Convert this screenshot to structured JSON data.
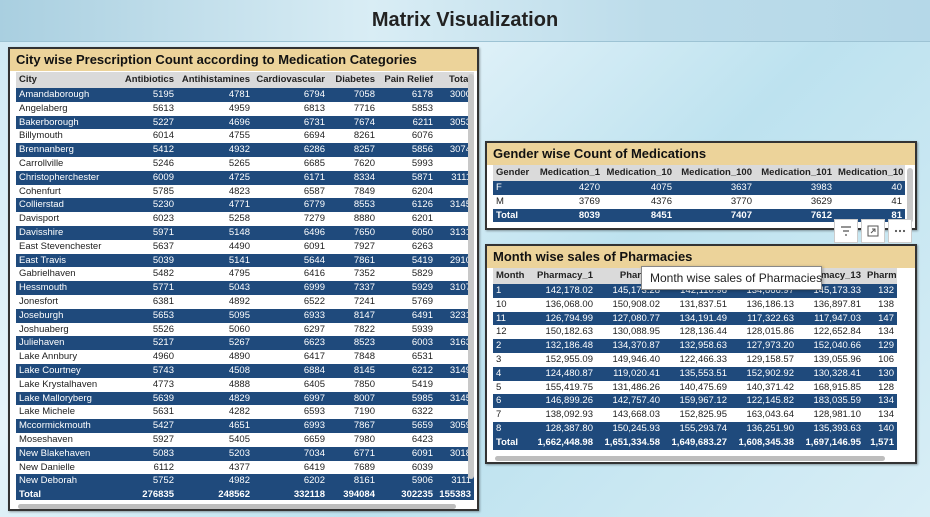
{
  "page": {
    "title": "Matrix Visualization"
  },
  "city": {
    "title": "City wise Prescription Count according to Medication Categories",
    "headers": [
      "City",
      "Antibiotics",
      "Antihistamines",
      "Cardiovascular",
      "Diabetes",
      "Pain Relief",
      "Total"
    ],
    "rows": [
      [
        "Amandaborough",
        "5195",
        "4781",
        "6794",
        "7058",
        "6178",
        "3000"
      ],
      [
        "Angelaberg",
        "5613",
        "4959",
        "6813",
        "7716",
        "5853",
        ""
      ],
      [
        "Bakerborough",
        "5227",
        "4696",
        "6731",
        "7674",
        "6211",
        "3053"
      ],
      [
        "Billymouth",
        "6014",
        "4755",
        "6694",
        "8261",
        "6076",
        ""
      ],
      [
        "Brennanberg",
        "5412",
        "4932",
        "6286",
        "8257",
        "5856",
        "3074"
      ],
      [
        "Carrollville",
        "5246",
        "5265",
        "6685",
        "7620",
        "5993",
        ""
      ],
      [
        "Christopherchester",
        "6009",
        "4725",
        "6171",
        "8334",
        "5871",
        "3111"
      ],
      [
        "Cohenfurt",
        "5785",
        "4823",
        "6587",
        "7849",
        "6204",
        ""
      ],
      [
        "Collierstad",
        "5230",
        "4771",
        "6779",
        "8553",
        "6126",
        "3145"
      ],
      [
        "Davisport",
        "6023",
        "5258",
        "7279",
        "8880",
        "6201",
        ""
      ],
      [
        "Davisshire",
        "5971",
        "5148",
        "6496",
        "7650",
        "6050",
        "3131"
      ],
      [
        "East Stevenchester",
        "5637",
        "4490",
        "6091",
        "7927",
        "6263",
        ""
      ],
      [
        "East Travis",
        "5039",
        "5141",
        "5644",
        "7861",
        "5419",
        "2910"
      ],
      [
        "Gabrielhaven",
        "5482",
        "4795",
        "6416",
        "7352",
        "5829",
        ""
      ],
      [
        "Hessmouth",
        "5771",
        "5043",
        "6999",
        "7337",
        "5929",
        "3107"
      ],
      [
        "Jonesfort",
        "6381",
        "4892",
        "6522",
        "7241",
        "5769",
        ""
      ],
      [
        "Joseburgh",
        "5653",
        "5095",
        "6933",
        "8147",
        "6491",
        "3231"
      ],
      [
        "Joshuaberg",
        "5526",
        "5060",
        "6297",
        "7822",
        "5939",
        ""
      ],
      [
        "Juliehaven",
        "5217",
        "5267",
        "6623",
        "8523",
        "6003",
        "3163"
      ],
      [
        "Lake Annbury",
        "4960",
        "4890",
        "6417",
        "7848",
        "6531",
        ""
      ],
      [
        "Lake Courtney",
        "5743",
        "4508",
        "6884",
        "8145",
        "6212",
        "3149"
      ],
      [
        "Lake Krystalhaven",
        "4773",
        "4888",
        "6405",
        "7850",
        "5419",
        ""
      ],
      [
        "Lake Malloryberg",
        "5639",
        "4829",
        "6997",
        "8007",
        "5985",
        "3145"
      ],
      [
        "Lake Michele",
        "5631",
        "4282",
        "6593",
        "7190",
        "6322",
        ""
      ],
      [
        "Mccormickmouth",
        "5427",
        "4651",
        "6993",
        "7867",
        "5659",
        "3059"
      ],
      [
        "Moseshaven",
        "5927",
        "5405",
        "6659",
        "7980",
        "6423",
        ""
      ],
      [
        "New Blakehaven",
        "5083",
        "5203",
        "7034",
        "6771",
        "6091",
        "3018"
      ],
      [
        "New Danielle",
        "6112",
        "4377",
        "6419",
        "7689",
        "6039",
        ""
      ],
      [
        "New Deborah",
        "5752",
        "4982",
        "6202",
        "8161",
        "5906",
        "3111"
      ]
    ],
    "total": [
      "Total",
      "276835",
      "248562",
      "332118",
      "394084",
      "302235",
      "155383"
    ]
  },
  "gender": {
    "title": "Gender wise Count of Medications",
    "headers": [
      "Gender",
      "Medication_1",
      "Medication_10",
      "Medication_100",
      "Medication_101",
      "Medication_10"
    ],
    "rows": [
      [
        "F",
        "4270",
        "4075",
        "3637",
        "3983",
        "40"
      ],
      [
        "M",
        "3769",
        "4376",
        "3770",
        "3629",
        "41"
      ]
    ],
    "total": [
      "Total",
      "8039",
      "8451",
      "7407",
      "7612",
      "81"
    ]
  },
  "month": {
    "title": "Month wise sales of Pharmacies",
    "headers": [
      "Month",
      "Pharmacy_1",
      "Pharmac",
      "",
      "",
      "macy_13",
      "Pharm"
    ],
    "rows": [
      [
        "1",
        "142,178.02",
        "145,173.28",
        "142,110.98",
        "134,866.97",
        "145,173.33",
        "132"
      ],
      [
        "10",
        "136,068.00",
        "150,908.02",
        "131,837.51",
        "136,186.13",
        "136,897.81",
        "138"
      ],
      [
        "11",
        "126,794.99",
        "127,080.77",
        "134,191.49",
        "117,322.63",
        "117,947.03",
        "147"
      ],
      [
        "12",
        "150,182.63",
        "130,088.95",
        "128,136.44",
        "128,015.86",
        "122,652.84",
        "134"
      ],
      [
        "2",
        "132,186.48",
        "134,370.87",
        "132,958.63",
        "127,973.20",
        "152,040.66",
        "129"
      ],
      [
        "3",
        "152,955.09",
        "149,946.40",
        "122,466.33",
        "129,158.57",
        "139,055.96",
        "106"
      ],
      [
        "4",
        "124,480.87",
        "119,020.41",
        "135,553.51",
        "152,902.92",
        "130,328.41",
        "130"
      ],
      [
        "5",
        "155,419.75",
        "131,486.26",
        "140,475.69",
        "140,371.42",
        "168,915.85",
        "128"
      ],
      [
        "6",
        "146,899.26",
        "142,757.40",
        "159,967.12",
        "122,145.82",
        "183,035.59",
        "134"
      ],
      [
        "7",
        "138,092.93",
        "143,668.03",
        "152,825.95",
        "163,043.64",
        "128,981.10",
        "134"
      ],
      [
        "8",
        "128,387.80",
        "150,245.93",
        "155,293.74",
        "136,251.90",
        "135,393.63",
        "140"
      ]
    ],
    "total": [
      "Total",
      "1,662,448.98",
      "1,651,334.58",
      "1,649,683.27",
      "1,608,345.38",
      "1,697,146.95",
      "1,571"
    ]
  },
  "tooltip": "Month wise sales of Pharmacies",
  "icons": [
    "filter-icon",
    "focus-mode-icon",
    "more-options-icon"
  ]
}
